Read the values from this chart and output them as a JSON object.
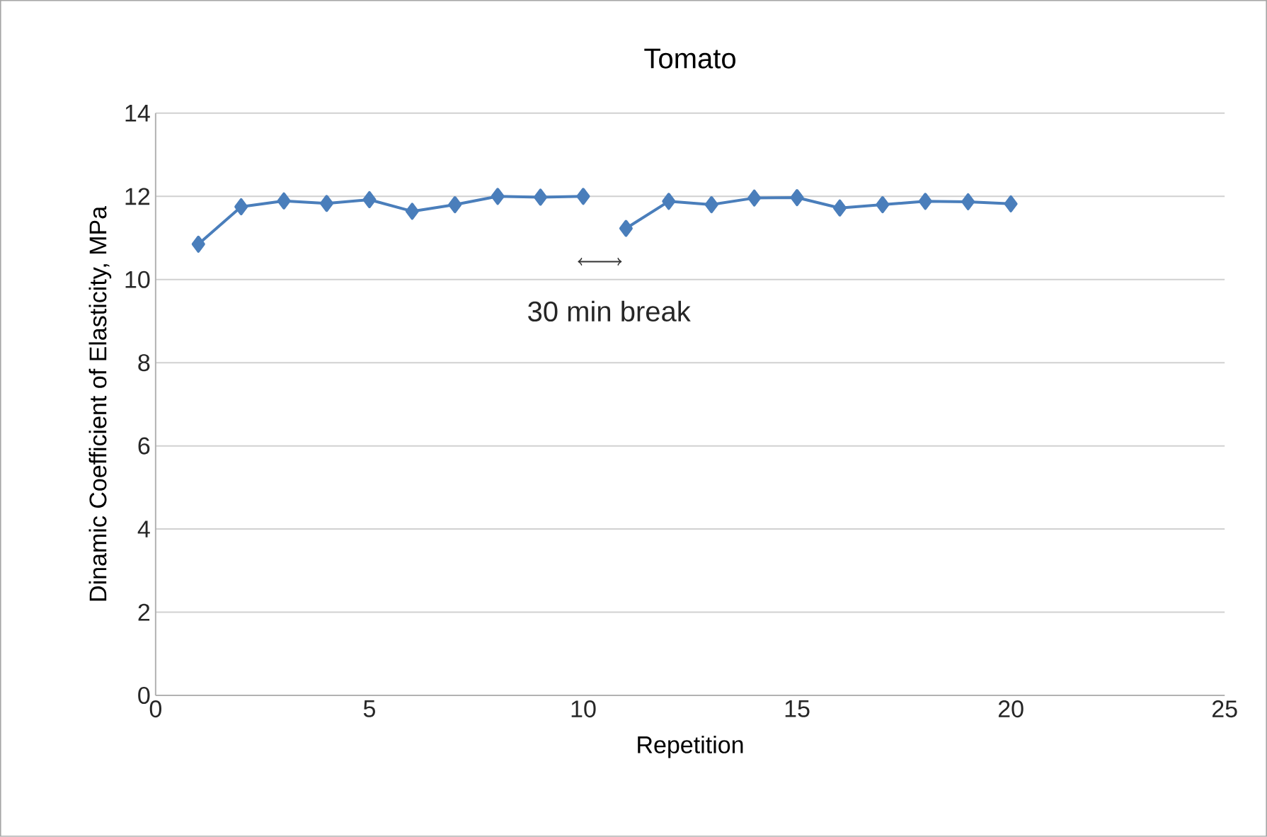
{
  "chart_data": {
    "type": "line",
    "title": "Tomato",
    "xlabel": "Repetition",
    "ylabel": "Dinamic Coefficient of Elasticity, MPa",
    "series": [
      {
        "color": "#4a7ebb",
        "x": [
          1,
          2,
          3,
          4,
          5,
          6,
          7,
          8,
          9,
          10
        ],
        "values": [
          10.85,
          11.75,
          11.89,
          11.83,
          11.92,
          11.64,
          11.8,
          12.0,
          11.98,
          12.0
        ]
      },
      {
        "color": "#4a7ebb",
        "x": [
          11,
          12,
          13,
          14,
          15,
          16,
          17,
          18,
          19,
          20
        ],
        "values": [
          11.23,
          11.88,
          11.8,
          11.96,
          11.97,
          11.72,
          11.8,
          11.88,
          11.87,
          11.82
        ]
      }
    ],
    "annotations": [
      "30 min break"
    ],
    "xlim": [
      0,
      25
    ],
    "xticks": [
      0,
      5,
      10,
      15,
      20,
      25
    ],
    "ylim": [
      0,
      14
    ],
    "yticks": [
      0,
      2,
      4,
      6,
      8,
      10,
      12,
      14
    ],
    "grid": "y",
    "marker": "diamond",
    "line_style": "solid"
  }
}
